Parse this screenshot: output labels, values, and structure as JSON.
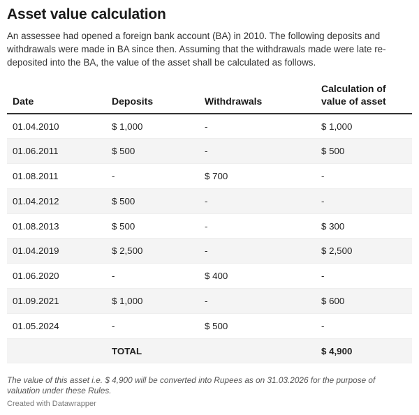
{
  "title": "Asset value calculation",
  "description": "An assessee had opened a foreign bank account (BA) in 2010. The following deposits and withdrawals were made in BA since then. Assuming that the withdrawals made were late re-deposited into the BA, the value of the asset shall be calculated as follows.",
  "chart_data": {
    "type": "table",
    "columns": [
      "Date",
      "Deposits",
      "Withdrawals",
      "Calculation of value of asset"
    ],
    "rows": [
      [
        "01.04.2010",
        "$ 1,000",
        "-",
        "$ 1,000"
      ],
      [
        "01.06.2011",
        "$ 500",
        "-",
        "$ 500"
      ],
      [
        "01.08.2011",
        "-",
        "$ 700",
        "-"
      ],
      [
        "01.04.2012",
        "$ 500",
        "-",
        "-"
      ],
      [
        "01.08.2013",
        "$ 500",
        "-",
        "$ 300"
      ],
      [
        "01.04.2019",
        "$ 2,500",
        "-",
        "$ 2,500"
      ],
      [
        "01.06.2020",
        "-",
        "$ 400",
        "-"
      ],
      [
        "01.09.2021",
        "$ 1,000",
        "-",
        "$ 600"
      ],
      [
        "01.05.2024",
        "-",
        "$ 500",
        "-"
      ],
      [
        "",
        "TOTAL",
        "",
        "$ 4,900"
      ]
    ]
  },
  "note": "The value of this asset i.e. $ 4,900 will be converted into Rupees as on 31.03.2026 for the purpose of valuation under these Rules.",
  "credit": "Created with Datawrapper"
}
